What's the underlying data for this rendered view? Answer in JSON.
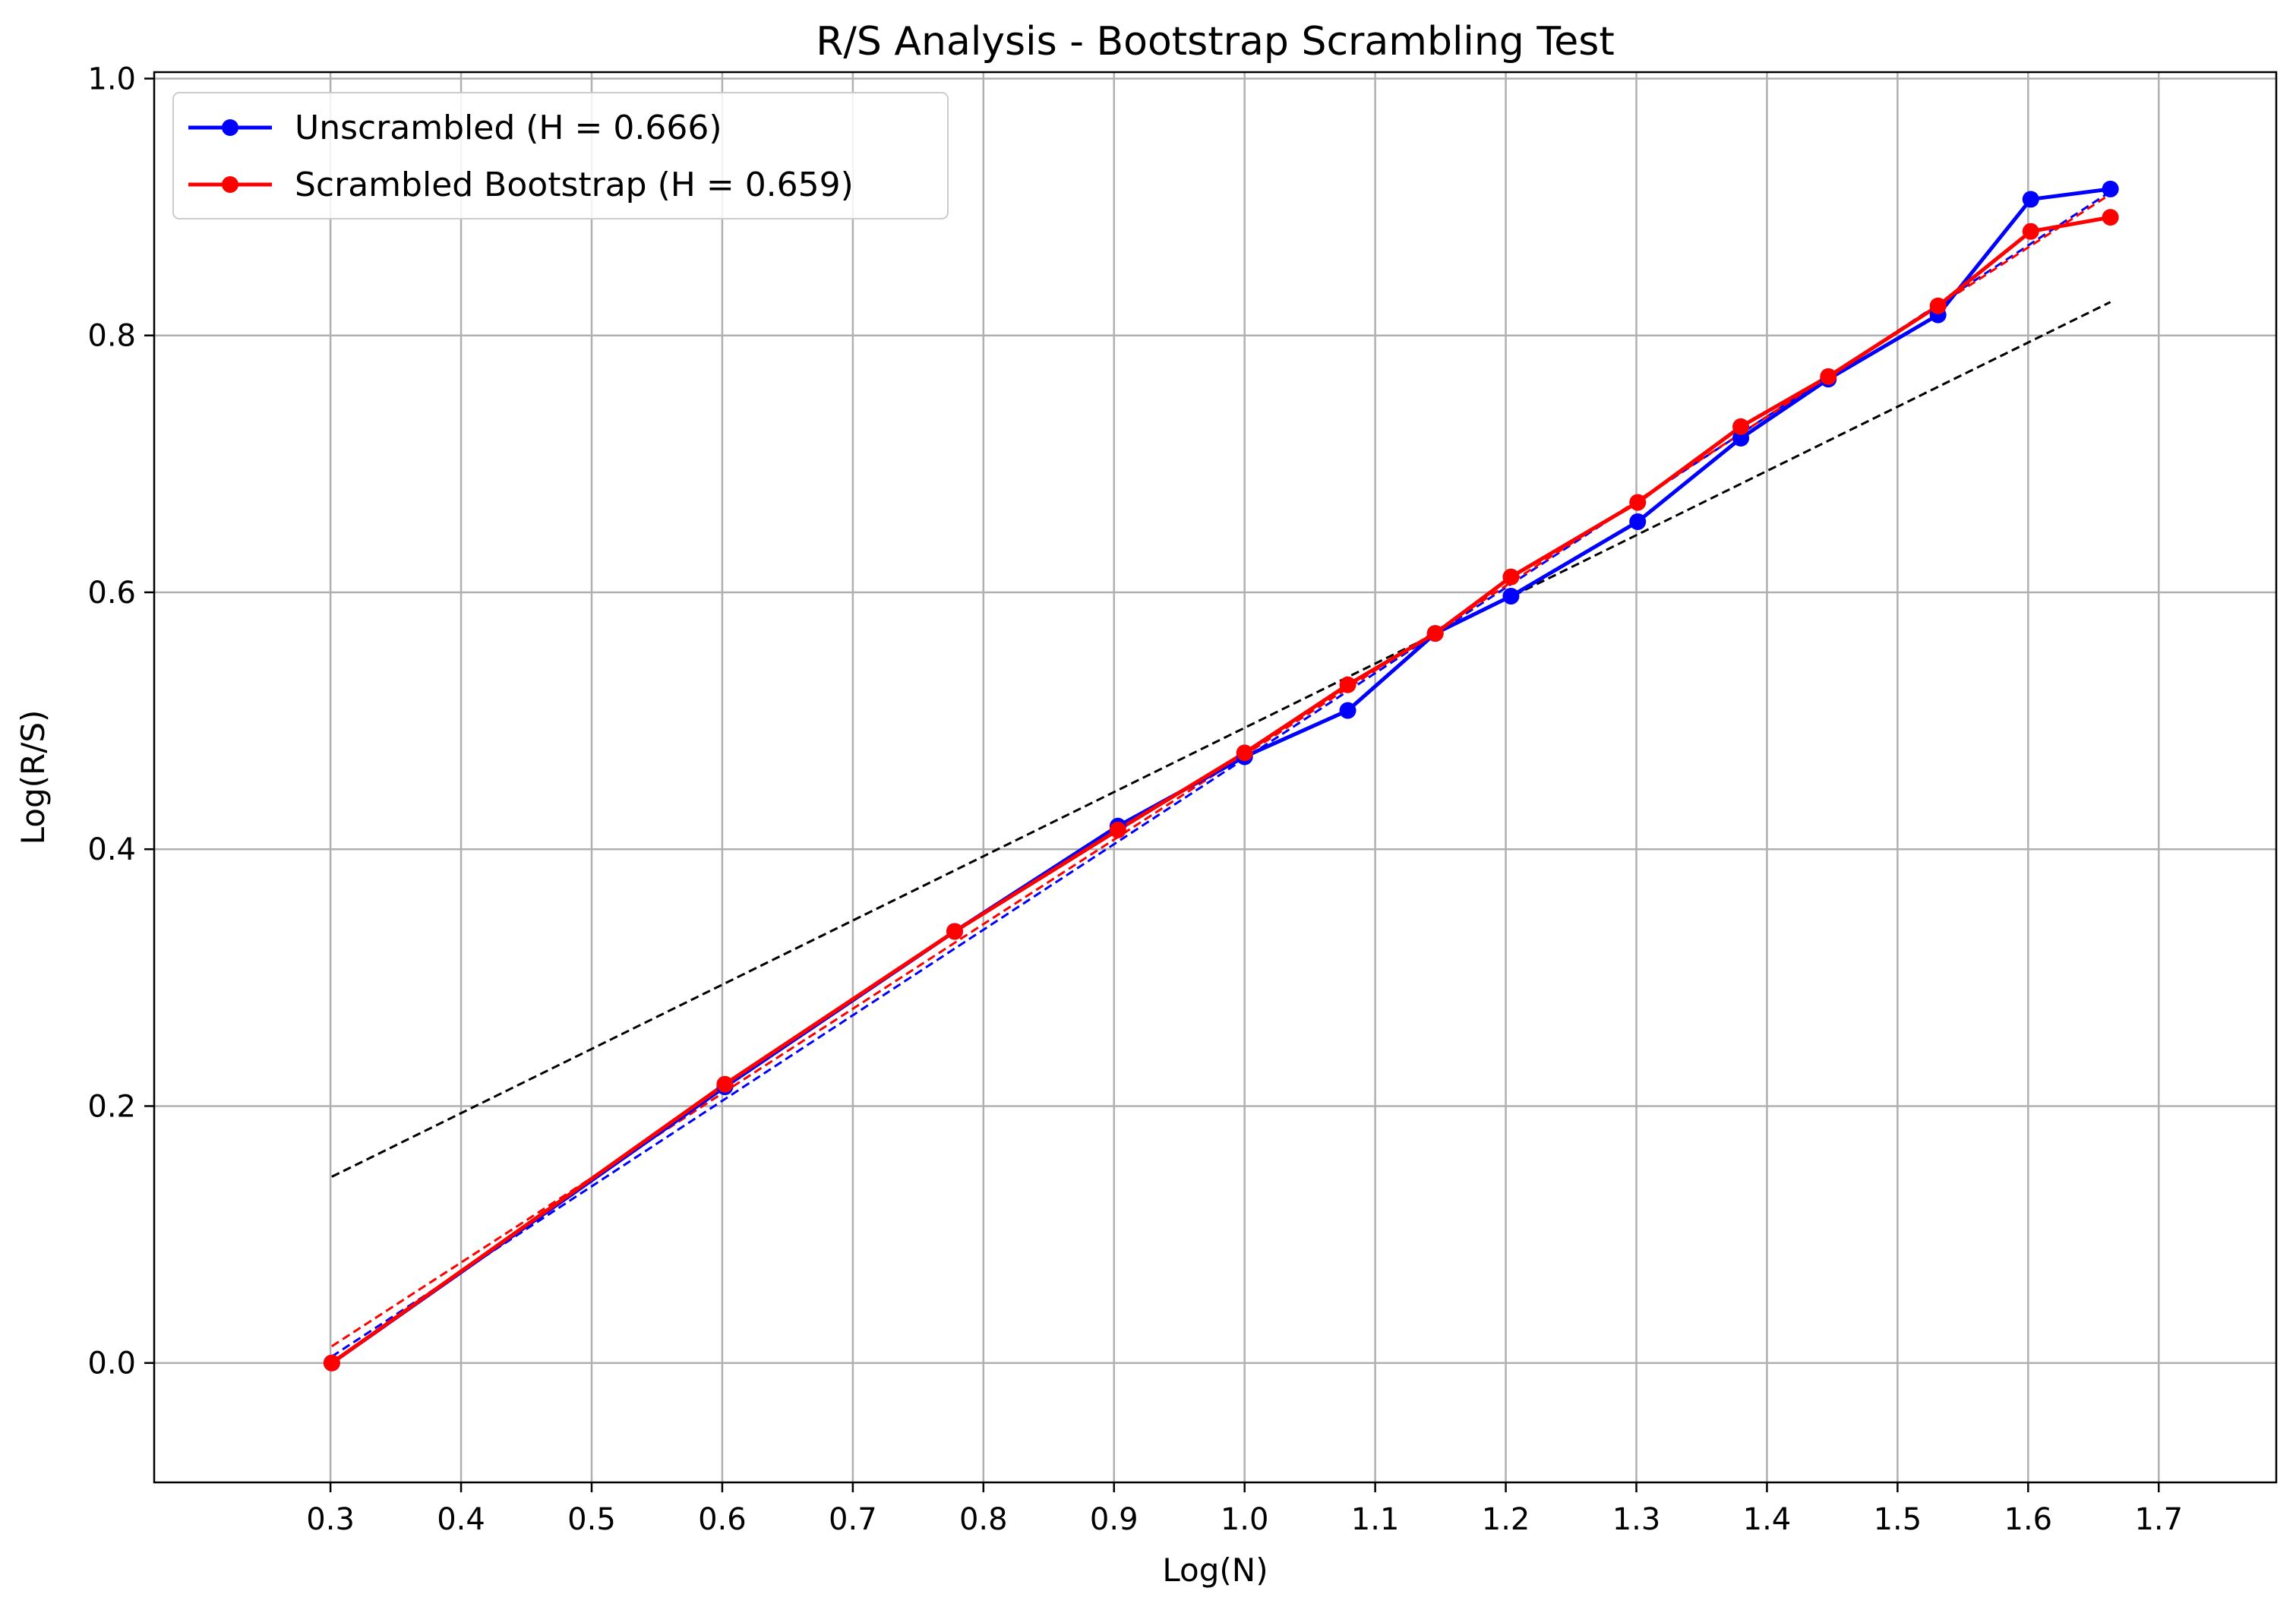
{
  "chart_data": {
    "type": "line",
    "title": "R/S Analysis - Bootstrap Scrambling Test",
    "xlabel": "Log(N)",
    "ylabel": "Log(R/S)",
    "xlim": [
      0.165,
      1.79
    ],
    "ylim": [
      -0.093,
      1.005
    ],
    "x_ticks": [
      0.3,
      0.4,
      0.5,
      0.6,
      0.7,
      0.8,
      0.9,
      1.0,
      1.1,
      1.2,
      1.3,
      1.4,
      1.5,
      1.6,
      1.7
    ],
    "x_tick_labels": [
      "0.3",
      "0.4",
      "0.5",
      "0.6",
      "0.7",
      "0.8",
      "0.9",
      "1.0",
      "1.1",
      "1.2",
      "1.3",
      "1.4",
      "1.5",
      "1.6",
      "1.7"
    ],
    "y_ticks": [
      0.0,
      0.2,
      0.4,
      0.6,
      0.8,
      1.0
    ],
    "y_tick_labels": [
      "0.0",
      "0.2",
      "0.4",
      "0.6",
      "0.8",
      "1.0"
    ],
    "grid": true,
    "legend_position": "top-left",
    "series": [
      {
        "name": "Unscrambled (H = 0.666)",
        "color": "#0000ff",
        "x": [
          0.301,
          0.602,
          0.778,
          0.903,
          1.0,
          1.079,
          1.146,
          1.204,
          1.301,
          1.38,
          1.447,
          1.531,
          1.602,
          1.663
        ],
        "y": [
          0.0,
          0.215,
          0.336,
          0.418,
          0.472,
          0.508,
          0.568,
          0.597,
          0.655,
          0.72,
          0.766,
          0.816,
          0.906,
          0.914
        ]
      },
      {
        "name": "Scrambled Bootstrap (H = 0.659)",
        "color": "#ff0000",
        "x": [
          0.301,
          0.602,
          0.778,
          0.903,
          1.0,
          1.079,
          1.146,
          1.204,
          1.301,
          1.38,
          1.447,
          1.531,
          1.602,
          1.663
        ],
        "y": [
          0.0,
          0.217,
          0.336,
          0.415,
          0.475,
          0.528,
          0.568,
          0.612,
          0.67,
          0.729,
          0.768,
          0.823,
          0.881,
          0.892
        ]
      }
    ],
    "fit_lines": [
      {
        "color": "#0000ff",
        "x": [
          0.301,
          1.663
        ],
        "y": [
          0.005,
          0.912
        ]
      },
      {
        "color": "#ff0000",
        "x": [
          0.301,
          1.663
        ],
        "y": [
          0.013,
          0.91
        ]
      },
      {
        "color": "#000000",
        "x": [
          0.301,
          1.663
        ],
        "y": [
          0.145,
          0.826
        ]
      }
    ]
  }
}
